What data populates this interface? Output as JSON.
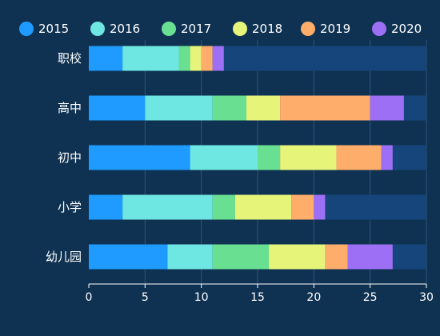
{
  "colors": {
    "background": "#0f3252",
    "track": "#15457a",
    "gridline": "#2e5478",
    "axis": "#ffffff"
  },
  "chart_data": {
    "type": "bar",
    "orientation": "horizontal",
    "stacked": true,
    "categories": [
      "职校",
      "高中",
      "初中",
      "小学",
      "幼儿园"
    ],
    "series": [
      {
        "name": "2015",
        "color": "#1f9bff",
        "values": [
          3,
          5,
          9,
          3,
          7
        ]
      },
      {
        "name": "2016",
        "color": "#6ee6e2",
        "values": [
          5,
          6,
          6,
          8,
          4
        ]
      },
      {
        "name": "2017",
        "color": "#69e091",
        "values": [
          1,
          3,
          2,
          2,
          5
        ]
      },
      {
        "name": "2018",
        "color": "#e6f57a",
        "values": [
          1,
          3,
          5,
          5,
          5
        ]
      },
      {
        "name": "2019",
        "color": "#ffad6b",
        "values": [
          1,
          8,
          4,
          2,
          2
        ]
      },
      {
        "name": "2020",
        "color": "#9d6ff5",
        "values": [
          1,
          3,
          1,
          1,
          4
        ]
      }
    ],
    "xlim": [
      0,
      30
    ],
    "xticks": [
      0,
      5,
      10,
      15,
      20,
      25,
      30
    ],
    "grid": true,
    "legend_position": "top",
    "title": "",
    "xlabel": "",
    "ylabel": ""
  }
}
